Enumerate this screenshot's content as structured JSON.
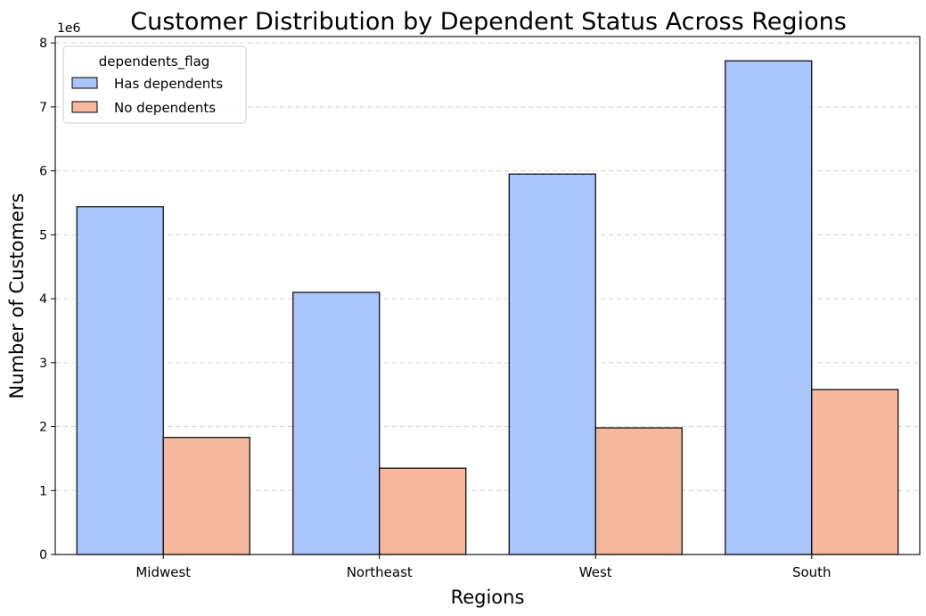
{
  "chart_data": {
    "type": "bar",
    "title": "Customer Distribution by Dependent Status Across Regions",
    "xlabel": "Regions",
    "ylabel": "Number of Customers",
    "y_offset_label": "1e6",
    "y_scale": 1000000,
    "categories": [
      "Midwest",
      "Northeast",
      "West",
      "South"
    ],
    "series": [
      {
        "name": "Has dependents",
        "color": "#aac5fb",
        "values": [
          5440000,
          4100000,
          5950000,
          7720000
        ]
      },
      {
        "name": "No dependents",
        "color": "#f6b89c",
        "values": [
          1830000,
          1350000,
          1980000,
          2580000
        ]
      }
    ],
    "ylim": [
      0,
      8.1
    ],
    "yticks": [
      0,
      1,
      2,
      3,
      4,
      5,
      6,
      7,
      8
    ],
    "grid": {
      "axis": "y",
      "style": "dashed"
    },
    "legend": {
      "title": "dependents_flag",
      "placement": "top-left",
      "entries": [
        "Has dependents",
        "No dependents"
      ]
    }
  }
}
